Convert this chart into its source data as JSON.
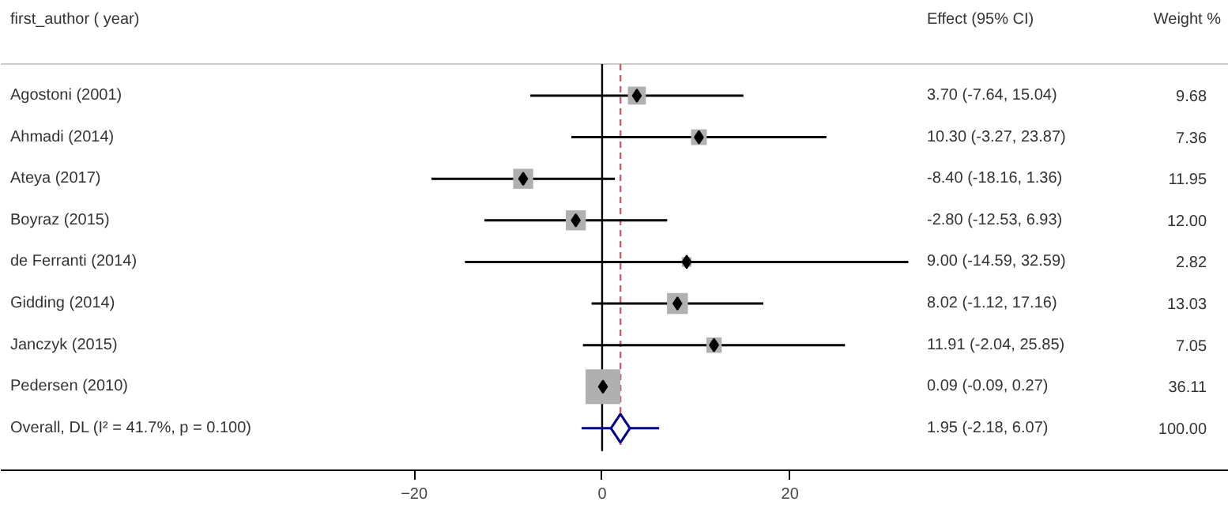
{
  "chart_data": {
    "type": "scatter",
    "orientation": "horizontal",
    "ylabel": "first_author ( year)",
    "categories": [
      "Agostoni (2001)",
      "Ahmadi (2014)",
      "Ateya (2017)",
      "Boyraz (2015)",
      "de Ferranti (2014)",
      "Gidding (2014)",
      "Janczyk (2015)",
      "Pedersen (2010)",
      "Overall, DL (I² = 41.7%, p = 0.100)"
    ],
    "series": [
      {
        "marker": "square",
        "color": "#b0b0b0",
        "values": [
          3.7,
          10.3,
          -8.4,
          -2.8,
          9.0,
          8.02,
          11.91,
          0.09,
          null
        ],
        "errors": [
          [
            -7.64,
            15.04
          ],
          [
            -3.27,
            23.87
          ],
          [
            -18.16,
            1.36
          ],
          [
            -12.53,
            6.93
          ],
          [
            -14.59,
            32.59
          ],
          [
            -1.12,
            17.16
          ],
          [
            -2.04,
            25.85
          ],
          [
            -0.09,
            0.27
          ],
          null
        ],
        "sizes": [
          0.268,
          0.204,
          0.331,
          0.332,
          0.078,
          0.361,
          0.195,
          1,
          null
        ]
      },
      {
        "marker": "diamond",
        "color": "#00008b",
        "values": [
          null,
          null,
          null,
          null,
          null,
          null,
          null,
          null,
          1.95
        ],
        "errors": [
          null,
          null,
          null,
          null,
          null,
          null,
          null,
          null,
          [
            -2.18,
            6.07
          ]
        ]
      }
    ],
    "xlim": [
      -64,
      66.7
    ],
    "xticks": [
      -20,
      0,
      20
    ],
    "ref_lines": [
      {
        "axis": "x",
        "value": 0,
        "color": "#000000",
        "line_style": "solid"
      },
      {
        "axis": "x",
        "value": 1.95,
        "color": "#c06070",
        "line_style": "dashed"
      }
    ],
    "annotations": [
      "Effect (95% CI)",
      "Weight %",
      "3.70 (-7.64, 15.04)",
      "10.30 (-3.27, 23.87)",
      "-8.40 (-18.16, 1.36)",
      "-2.80 (-12.53, 6.93)",
      "9.00 (-14.59, 32.59)",
      "8.02 (-1.12, 17.16)",
      "11.91 (-2.04, 25.85)",
      "0.09 (-0.09, 0.27)",
      "1.95 (-2.18, 6.07)",
      "9.68",
      "7.36",
      "11.95",
      "12.00",
      "2.82",
      "13.03",
      "7.05",
      "36.11",
      "100.00"
    ]
  }
}
